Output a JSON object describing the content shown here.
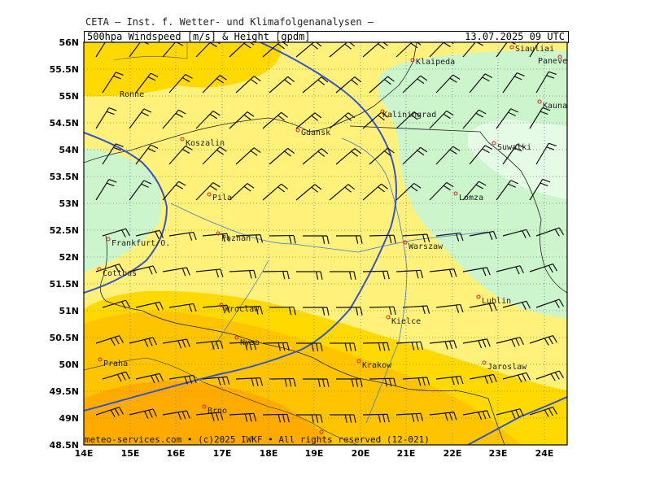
{
  "header": {
    "institute": "CETA – Inst. f. Wetter- und Klimafolgenanalysen –",
    "product": "500hpa Windspeed [m/s] & Height [gpdm]",
    "valid_time": "13.07.2025 09 UTC"
  },
  "footer": "meteo-services.com • (c)2025 IWKF • All rights reserved (12-021)",
  "axes": {
    "lat_labels": [
      "56N",
      "55.5N",
      "55N",
      "54.5N",
      "54N",
      "53.5N",
      "53N",
      "52.5N",
      "52N",
      "51.5N",
      "51N",
      "50.5N",
      "50N",
      "49.5N",
      "49N",
      "48.5N"
    ],
    "lon_labels": [
      "14E",
      "15E",
      "16E",
      "17E",
      "18E",
      "19E",
      "20E",
      "21E",
      "22E",
      "23E",
      "24E"
    ]
  },
  "colors": {
    "light_green": "#ccf5cc",
    "pale_green": "#e6fbe6",
    "light_yellow": "#fff17a",
    "yellow": "#ffd900",
    "orange_yellow": "#ffc400",
    "orange": "#ffab00",
    "contour": "#3355cc",
    "grid": "#7777aa"
  },
  "cities": [
    {
      "name": "Klaipeda"
    },
    {
      "name": "Siauliai"
    },
    {
      "name": "Panevezys"
    },
    {
      "name": "Ronne"
    },
    {
      "name": "Kaliningrad"
    },
    {
      "name": "Kaunas"
    },
    {
      "name": "Gdansk"
    },
    {
      "name": "Koszalin"
    },
    {
      "name": "Suwalki"
    },
    {
      "name": "Pila"
    },
    {
      "name": "Lomza"
    },
    {
      "name": "Poznan"
    },
    {
      "name": "Frankfurt/O."
    },
    {
      "name": "Warszaw"
    },
    {
      "name": "Cottbus"
    },
    {
      "name": "Lublin"
    },
    {
      "name": "Wroclaw"
    },
    {
      "name": "Kielce"
    },
    {
      "name": "Nysa"
    },
    {
      "name": "Praha"
    },
    {
      "name": "Krakow"
    },
    {
      "name": "Jaroslaw"
    },
    {
      "name": "Brno"
    }
  ]
}
